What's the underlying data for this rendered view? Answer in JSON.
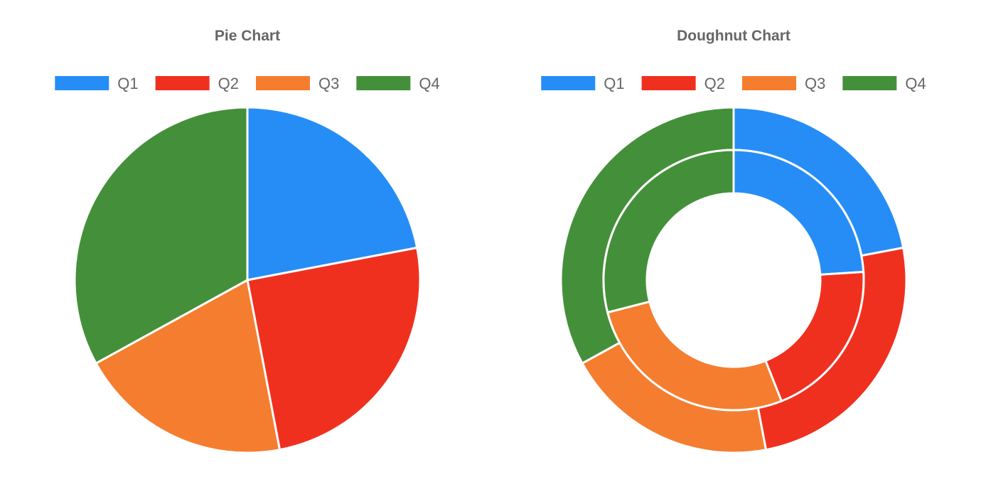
{
  "chart_data": [
    {
      "type": "pie",
      "title": "Pie Chart",
      "categories": [
        "Q1",
        "Q2",
        "Q3",
        "Q4"
      ],
      "values": [
        22,
        25,
        20,
        33
      ],
      "colors": [
        "#268DF6",
        "#F0301F",
        "#F57D2F",
        "#44903A"
      ],
      "legend": "top"
    },
    {
      "type": "pie",
      "subtype": "doughnut",
      "title": "Doughnut Chart",
      "categories": [
        "Q1",
        "Q2",
        "Q3",
        "Q4"
      ],
      "series": [
        {
          "values": [
            22,
            25,
            20,
            33
          ]
        },
        {
          "values": [
            24,
            20,
            27,
            29
          ]
        }
      ],
      "colors": [
        "#268DF6",
        "#F0301F",
        "#F57D2F",
        "#44903A"
      ],
      "legend": "top"
    }
  ]
}
